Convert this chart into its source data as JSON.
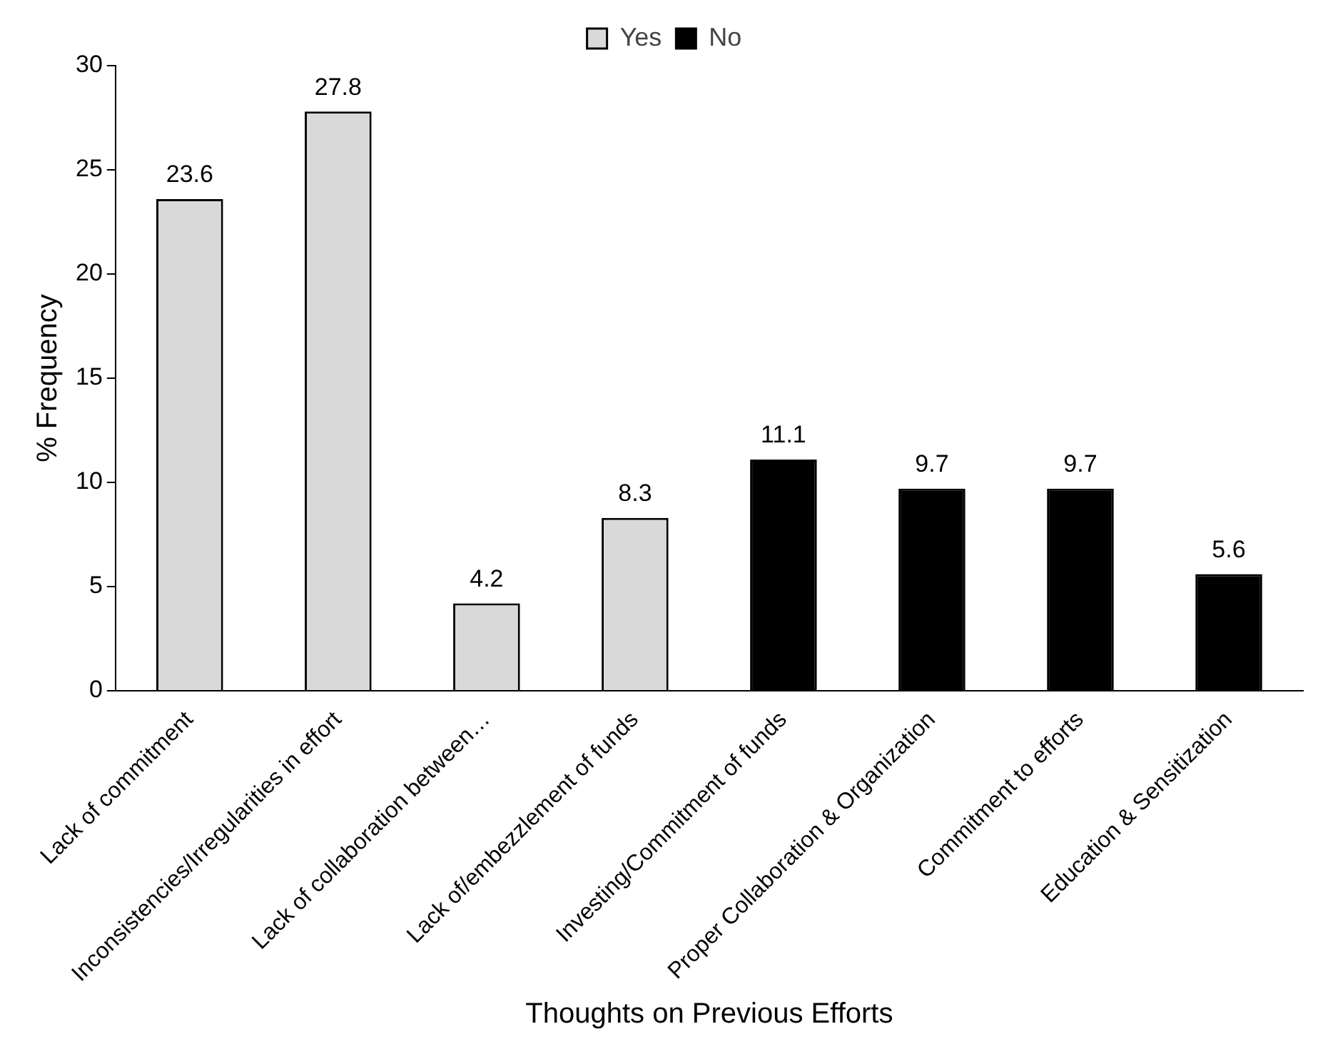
{
  "chart_data": {
    "type": "bar",
    "xlabel": "Thoughts on Previous Efforts",
    "ylabel": "% Frequency",
    "categories": [
      "Lack of commitment",
      "Inconsistencies/Irregularities in effort",
      "Lack of collaboration between…",
      "Lack of/embezzlement of funds",
      "Investing/Commitment of funds",
      "Proper Collaboration & Organization",
      "Commitment to efforts",
      "Education & Sensitization"
    ],
    "series": [
      {
        "name": "Yes",
        "color": "#d9d9d9",
        "values": [
          23.6,
          27.8,
          4.2,
          8.3,
          null,
          null,
          null,
          null
        ]
      },
      {
        "name": "No",
        "color": "#000000",
        "values": [
          null,
          null,
          null,
          null,
          11.1,
          9.7,
          9.7,
          5.6
        ]
      }
    ],
    "ylim": [
      0,
      30
    ],
    "yticks": [
      0,
      5,
      10,
      15,
      20,
      25,
      30
    ],
    "grid": false,
    "legend": "top",
    "data_labels": true
  }
}
